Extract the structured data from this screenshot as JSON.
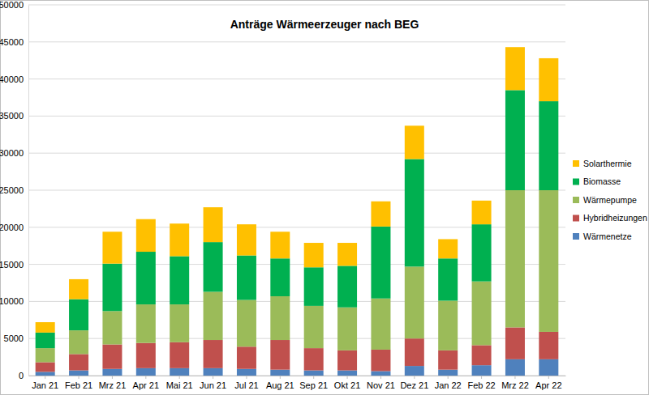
{
  "chart_data": {
    "type": "bar",
    "title": "Anträge Wärmeerzeuger nach BEG",
    "stacked": true,
    "grid": true,
    "legend": "right",
    "categories": [
      "Jan 21",
      "Feb 21",
      "Mrz 21",
      "Apr 21",
      "Mai 21",
      "Jun 21",
      "Jul 21",
      "Aug 21",
      "Sep 21",
      "Okt 21",
      "Nov 21",
      "Dez 21",
      "Jan 22",
      "Feb 22",
      "Mrz 22",
      "Apr 22"
    ],
    "ylim": [
      0,
      50000
    ],
    "yticks": [
      0,
      5000,
      10000,
      15000,
      20000,
      25000,
      30000,
      35000,
      40000,
      45000,
      50000
    ],
    "series": [
      {
        "name": "Wärmenetze",
        "color": "#4f81bd",
        "values": [
          500,
          700,
          900,
          1000,
          1000,
          1000,
          900,
          800,
          700,
          700,
          600,
          1300,
          800,
          1400,
          2200,
          2200
        ]
      },
      {
        "name": "Hybridheizungen",
        "color": "#c0504d",
        "values": [
          1300,
          2200,
          3300,
          3400,
          3500,
          3800,
          3000,
          4000,
          3000,
          2700,
          2900,
          3700,
          2600,
          2700,
          4300,
          3700
        ]
      },
      {
        "name": "Wärmepumpe",
        "color": "#9bbb59",
        "values": [
          1900,
          3200,
          4500,
          5200,
          5100,
          6500,
          6300,
          5900,
          5700,
          5800,
          6900,
          9700,
          6700,
          8600,
          18500,
          19100
        ]
      },
      {
        "name": "Biomasse",
        "color": "#00b050",
        "values": [
          2100,
          4200,
          6400,
          7100,
          6500,
          6700,
          6000,
          5100,
          5200,
          5600,
          9700,
          14500,
          5700,
          7700,
          13500,
          12000
        ]
      },
      {
        "name": "Solarthermie",
        "color": "#ffc000",
        "values": [
          1400,
          2700,
          4300,
          4400,
          4400,
          4700,
          4200,
          3600,
          3300,
          3100,
          3400,
          4500,
          2600,
          3200,
          5800,
          5800
        ]
      }
    ]
  }
}
